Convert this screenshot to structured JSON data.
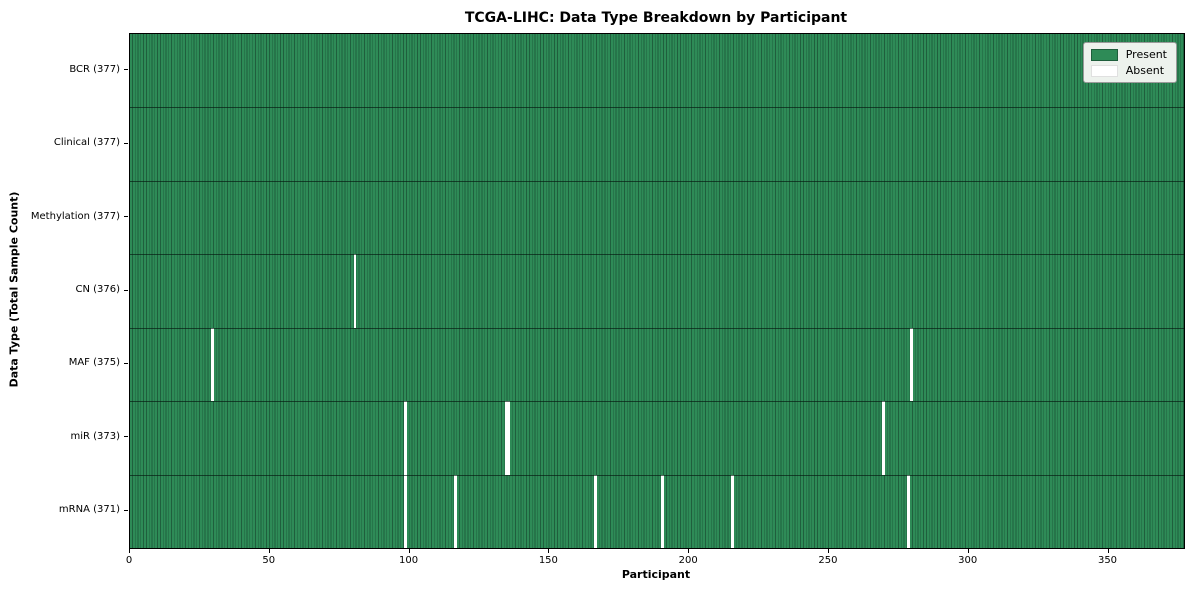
{
  "chart_data": {
    "type": "heatmap",
    "title": "TCGA-LIHC: Data Type Breakdown by Participant",
    "xlabel": "Participant",
    "ylabel": "Data Type (Total Sample Count)",
    "n_participants": 377,
    "x_axis": {
      "min": 0,
      "max": 377,
      "ticks": [
        0,
        50,
        100,
        150,
        200,
        250,
        300,
        350
      ]
    },
    "grid": "row-separators",
    "legend_position": "upper right",
    "legend": [
      {
        "label": "Present",
        "color": "#2e8b57"
      },
      {
        "label": "Absent",
        "color": "#ffffff"
      }
    ],
    "rows": [
      {
        "label": "BCR (377)",
        "name": "BCR",
        "total": 377,
        "absent_participants": []
      },
      {
        "label": "Clinical (377)",
        "name": "Clinical",
        "total": 377,
        "absent_participants": []
      },
      {
        "label": "Methylation (377)",
        "name": "Methylation",
        "total": 377,
        "absent_participants": []
      },
      {
        "label": "CN (376)",
        "name": "CN",
        "total": 376,
        "absent_participants": [
          80
        ]
      },
      {
        "label": "MAF (375)",
        "name": "MAF",
        "total": 375,
        "absent_participants": [
          29,
          279
        ]
      },
      {
        "label": "miR (373)",
        "name": "miR",
        "total": 373,
        "absent_participants": [
          98,
          134,
          135,
          269
        ]
      },
      {
        "label": "mRNA (371)",
        "name": "mRNA",
        "total": 371,
        "absent_participants": [
          98,
          116,
          166,
          190,
          215,
          278
        ]
      }
    ],
    "colors": {
      "present": "#2e8b57",
      "present_edge": "#1f5f3d",
      "absent": "#ffffff",
      "row_separator": "#14301f",
      "plot_border": "#000000",
      "legend_bg": "#edf2ed",
      "legend_border": "#9a9a9a"
    }
  }
}
